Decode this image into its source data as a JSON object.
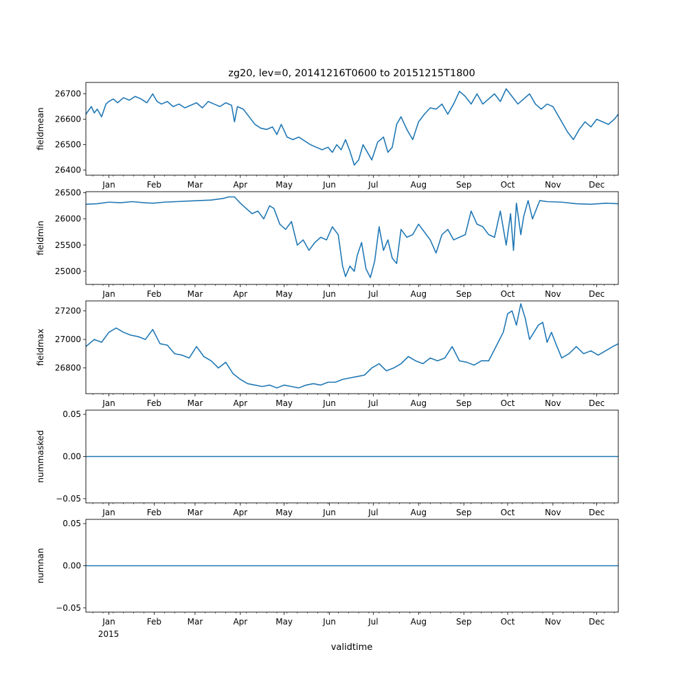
{
  "figure": {
    "title": "zg20, lev=0, 20141216T0600 to 20151215T1800",
    "xlabel": "validtime",
    "year_label": "2015",
    "line_color": "#1f77b4"
  },
  "chart_data": [
    {
      "type": "line",
      "name": "fieldmean",
      "ylabel": "fieldmean",
      "xlim_day_of_year": [
        -15.75,
        348.75
      ],
      "ylim": [
        26380,
        26745
      ],
      "month_ticks": [
        "Jan",
        "Feb",
        "Mar",
        "Apr",
        "May",
        "Jun",
        "Jul",
        "Aug",
        "Sep",
        "Oct",
        "Nov",
        "Dec"
      ],
      "yticks": [
        26400,
        26500,
        26600,
        26700
      ],
      "ytick_labels": [
        "26400",
        "26500",
        "26600",
        "26700"
      ],
      "x_day": [
        -15.75,
        -12,
        -10,
        -8,
        -5,
        -2,
        0,
        3,
        6,
        10,
        14,
        18,
        22,
        26,
        30,
        33,
        36,
        40,
        44,
        48,
        52,
        56,
        60,
        64,
        68,
        72,
        76,
        80,
        84,
        86,
        88,
        92,
        96,
        100,
        104,
        108,
        112,
        115,
        118,
        122,
        126,
        130,
        134,
        138,
        142,
        146,
        150,
        153,
        156,
        159,
        162,
        165,
        168,
        171,
        174,
        177,
        180,
        184,
        188,
        191,
        194,
        197,
        200,
        204,
        208,
        212,
        216,
        220,
        224,
        228,
        232,
        236,
        240,
        244,
        248,
        252,
        256,
        260,
        264,
        268,
        272,
        276,
        280,
        284,
        288,
        292,
        296,
        300,
        304,
        308,
        311,
        314,
        318,
        322,
        326,
        330,
        334,
        338,
        342,
        346,
        348.75
      ],
      "values": [
        26620,
        26650,
        26625,
        26640,
        26610,
        26660,
        26670,
        26680,
        26665,
        26685,
        26675,
        26690,
        26680,
        26665,
        26700,
        26670,
        26660,
        26670,
        26650,
        26660,
        26645,
        26655,
        26665,
        26645,
        26670,
        26660,
        26650,
        26665,
        26655,
        26590,
        26650,
        26640,
        26610,
        26580,
        26565,
        26560,
        26570,
        26540,
        26580,
        26530,
        26520,
        26530,
        26515,
        26500,
        26490,
        26480,
        26490,
        26470,
        26500,
        26480,
        26520,
        26475,
        26420,
        26440,
        26500,
        26470,
        26440,
        26510,
        26530,
        26470,
        26490,
        26580,
        26610,
        26560,
        26520,
        26590,
        26620,
        26645,
        26640,
        26660,
        26620,
        26660,
        26710,
        26690,
        26660,
        26700,
        26660,
        26680,
        26700,
        26670,
        26720,
        26690,
        26660,
        26680,
        26700,
        26660,
        26640,
        26660,
        26650,
        26610,
        26580,
        26550,
        26520,
        26560,
        26590,
        26570,
        26600,
        26590,
        26580,
        26600,
        26620
      ]
    },
    {
      "type": "line",
      "name": "fieldmin",
      "ylabel": "fieldmin",
      "xlim_day_of_year": [
        -15.75,
        348.75
      ],
      "ylim": [
        24750,
        26520
      ],
      "month_ticks": [
        "Jan",
        "Feb",
        "Mar",
        "Apr",
        "May",
        "Jun",
        "Jul",
        "Aug",
        "Sep",
        "Oct",
        "Nov",
        "Dec"
      ],
      "yticks": [
        25000,
        25500,
        26000,
        26500
      ],
      "ytick_labels": [
        "25000",
        "25500",
        "26000",
        "26500"
      ],
      "x_day": [
        -15.75,
        -8,
        0,
        8,
        16,
        24,
        30,
        38,
        46,
        54,
        62,
        70,
        78,
        82,
        86,
        90,
        94,
        98,
        102,
        106,
        110,
        113,
        117,
        121,
        125,
        129,
        133,
        137,
        141,
        145,
        149,
        153,
        157,
        160,
        162,
        165,
        168,
        170,
        173,
        176,
        179,
        182,
        185,
        188,
        191,
        194,
        197,
        200,
        204,
        208,
        212,
        216,
        220,
        224,
        228,
        232,
        236,
        240,
        244,
        248,
        252,
        256,
        260,
        264,
        268,
        272,
        275,
        277,
        279,
        282,
        284,
        287,
        290,
        295,
        300,
        310,
        320,
        330,
        340,
        348.75
      ],
      "values": [
        26280,
        26290,
        26320,
        26310,
        26330,
        26310,
        26300,
        26320,
        26330,
        26340,
        26350,
        26360,
        26390,
        26420,
        26420,
        26300,
        26200,
        26100,
        26150,
        26000,
        26250,
        26200,
        25900,
        25800,
        25950,
        25500,
        25600,
        25400,
        25550,
        25650,
        25600,
        25850,
        25700,
        25100,
        24900,
        25100,
        25000,
        25300,
        25550,
        25050,
        24880,
        25200,
        25850,
        25400,
        25600,
        25250,
        25150,
        25800,
        25650,
        25700,
        25900,
        25750,
        25600,
        25350,
        25700,
        25800,
        25600,
        25650,
        25700,
        26150,
        25900,
        25850,
        25700,
        25650,
        26150,
        25500,
        26100,
        25400,
        26300,
        25700,
        26050,
        26350,
        26000,
        26350,
        26330,
        26320,
        26290,
        26280,
        26300,
        26290
      ]
    },
    {
      "type": "line",
      "name": "fieldmax",
      "ylabel": "fieldmax",
      "xlim_day_of_year": [
        -15.75,
        348.75
      ],
      "ylim": [
        26620,
        27270
      ],
      "month_ticks": [
        "Jan",
        "Feb",
        "Mar",
        "Apr",
        "May",
        "Jun",
        "Jul",
        "Aug",
        "Sep",
        "Oct",
        "Nov",
        "Dec"
      ],
      "yticks": [
        26800,
        27000,
        27200
      ],
      "ytick_labels": [
        "26800",
        "27000",
        "27200"
      ],
      "x_day": [
        -15.75,
        -10,
        -5,
        0,
        5,
        10,
        15,
        20,
        25,
        30,
        35,
        40,
        45,
        50,
        55,
        60,
        65,
        70,
        75,
        80,
        85,
        90,
        95,
        100,
        105,
        110,
        115,
        120,
        125,
        130,
        135,
        140,
        145,
        150,
        155,
        160,
        165,
        170,
        175,
        180,
        185,
        190,
        195,
        200,
        205,
        210,
        215,
        220,
        225,
        230,
        235,
        240,
        245,
        250,
        255,
        260,
        265,
        270,
        273,
        276,
        279,
        282,
        285,
        288,
        291,
        294,
        297,
        300,
        303,
        306,
        310,
        315,
        320,
        325,
        330,
        335,
        340,
        345,
        348.75
      ],
      "values": [
        26950,
        27000,
        26980,
        27050,
        27080,
        27050,
        27030,
        27020,
        27000,
        27070,
        26970,
        26960,
        26900,
        26890,
        26870,
        26950,
        26880,
        26850,
        26800,
        26840,
        26760,
        26720,
        26690,
        26680,
        26670,
        26680,
        26660,
        26680,
        26670,
        26660,
        26680,
        26690,
        26680,
        26700,
        26700,
        26720,
        26730,
        26740,
        26750,
        26800,
        26830,
        26780,
        26800,
        26830,
        26880,
        26850,
        26830,
        26870,
        26850,
        26870,
        26950,
        26850,
        26840,
        26820,
        26850,
        26850,
        26950,
        27050,
        27180,
        27200,
        27100,
        27250,
        27150,
        27000,
        27050,
        27100,
        27120,
        26980,
        27050,
        26970,
        26870,
        26900,
        26950,
        26900,
        26920,
        26890,
        26920,
        26950,
        26970
      ]
    },
    {
      "type": "line",
      "name": "nummasked",
      "ylabel": "nummasked",
      "xlim_day_of_year": [
        -15.75,
        348.75
      ],
      "ylim": [
        -0.055,
        0.055
      ],
      "month_ticks": [
        "Jan",
        "Feb",
        "Mar",
        "Apr",
        "May",
        "Jun",
        "Jul",
        "Aug",
        "Sep",
        "Oct",
        "Nov",
        "Dec"
      ],
      "yticks": [
        -0.05,
        0.0,
        0.05
      ],
      "ytick_labels": [
        "−0.05",
        "0.00",
        "0.05"
      ],
      "x_day": [
        -15.75,
        348.75
      ],
      "values": [
        0,
        0
      ]
    },
    {
      "type": "line",
      "name": "numnan",
      "ylabel": "numnan",
      "xlim_day_of_year": [
        -15.75,
        348.75
      ],
      "ylim": [
        -0.055,
        0.055
      ],
      "month_ticks": [
        "Jan",
        "Feb",
        "Mar",
        "Apr",
        "May",
        "Jun",
        "Jul",
        "Aug",
        "Sep",
        "Oct",
        "Nov",
        "Dec"
      ],
      "yticks": [
        -0.05,
        0.0,
        0.05
      ],
      "ytick_labels": [
        "−0.05",
        "0.00",
        "0.05"
      ],
      "x_day": [
        -15.75,
        348.75
      ],
      "values": [
        0,
        0
      ]
    }
  ]
}
